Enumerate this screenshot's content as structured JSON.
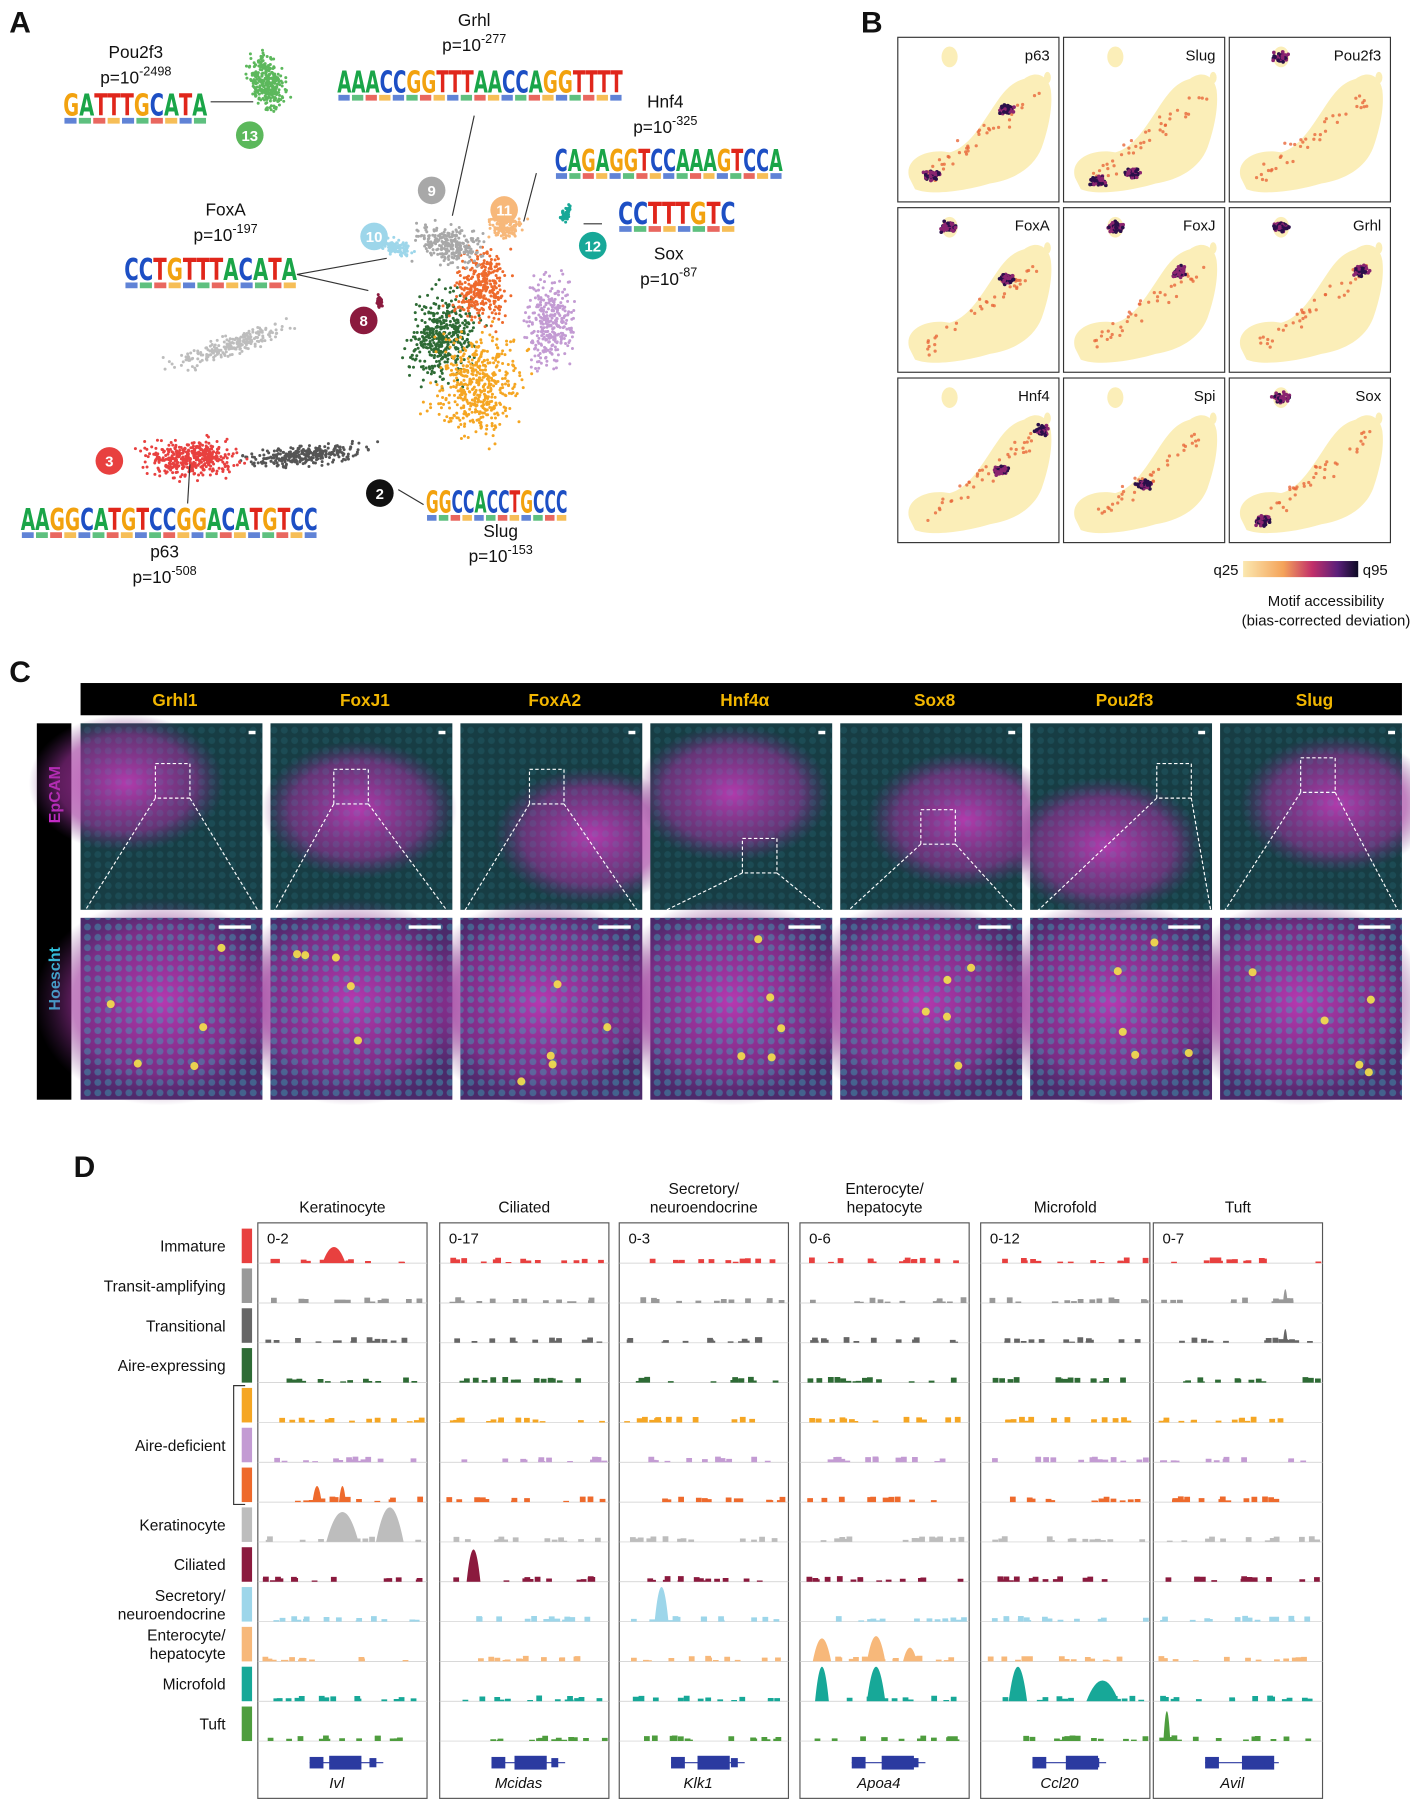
{
  "panel_a": {
    "label": "A",
    "motifs": [
      {
        "name": "Pou2f3",
        "p": {
          "base": "p=10",
          "exponent": "-2498"
        },
        "logo": "GATTTGCATA"
      },
      {
        "name": "Grhl",
        "p": {
          "base": "p=10",
          "exponent": "-277"
        },
        "logo": "AAACCGGTTTAACCAGGTTTT"
      },
      {
        "name": "Hnf4",
        "p": {
          "base": "p=10",
          "exponent": "-325"
        },
        "logo": "CAGAGGTCCAAAGTCCA"
      },
      {
        "name": "FoxA",
        "p": {
          "base": "p=10",
          "exponent": "-197"
        },
        "logo": "CCTGTTTACATA"
      },
      {
        "name": "Sox",
        "p": {
          "base": "p=10",
          "exponent": "-87"
        },
        "logo": "CCTTTGTC"
      },
      {
        "name": "p63",
        "p": {
          "base": "p=10",
          "exponent": "-508"
        },
        "logo": "AAGGCATGTCCGGACATGTCC"
      },
      {
        "name": "Slug",
        "p": {
          "base": "p=10",
          "exponent": "-153"
        },
        "logo": "GGCCACCTGCCC"
      }
    ],
    "clusters": [
      {
        "id": "13",
        "color": "#5cb85c"
      },
      {
        "id": "9",
        "color": "#a8a8a8"
      },
      {
        "id": "11",
        "color": "#f7b87a"
      },
      {
        "id": "10",
        "color": "#9dd6ea"
      },
      {
        "id": "12",
        "color": "#17a898"
      },
      {
        "id": "8",
        "color": "#8b1a3e"
      },
      {
        "id": "3",
        "color": "#e8403f"
      },
      {
        "id": "2",
        "color": "#111111"
      }
    ]
  },
  "panel_b": {
    "label": "B",
    "tiles": [
      "p63",
      "Slug",
      "Pou2f3",
      "FoxA",
      "FoxJ",
      "Grhl",
      "Hnf4",
      "Spi",
      "Sox"
    ],
    "scale": {
      "low": "q25",
      "high": "q95"
    },
    "title": [
      "Motif accessibility",
      "(bias-corrected deviation)"
    ]
  },
  "panel_c": {
    "label": "C",
    "markers": [
      "Grhl1",
      "FoxJ1",
      "FoxA2",
      "Hnf4α",
      "Sox8",
      "Pou2f3",
      "Slug"
    ],
    "stains": [
      "EpCAM",
      "Hoescht"
    ]
  },
  "panel_d": {
    "label": "D",
    "columns": [
      {
        "title": [
          "Keratinocyte"
        ],
        "range": "0-2",
        "gene": "Ivl"
      },
      {
        "title": [
          "Ciliated"
        ],
        "range": "0-17",
        "gene": "Mcidas"
      },
      {
        "title": [
          "Secretory/",
          "neuroendocrine"
        ],
        "range": "0-3",
        "gene": "Klk1"
      },
      {
        "title": [
          "Enterocyte/",
          "hepatocyte"
        ],
        "range": "0-6",
        "gene": "Apoa4"
      },
      {
        "title": [
          "Microfold"
        ],
        "range": "0-12",
        "gene": "Ccl20"
      },
      {
        "title": [
          "Tuft"
        ],
        "range": "0-7",
        "gene": "Avil"
      }
    ],
    "rows": [
      {
        "lines": [
          "Immature"
        ]
      },
      {
        "lines": [
          "Transit-amplifying"
        ]
      },
      {
        "lines": [
          "Transitional"
        ]
      },
      {
        "lines": [
          "Aire-expressing"
        ]
      },
      {
        "lines": [
          "Aire-deficient"
        ]
      },
      {
        "lines": [
          "Keratinocyte"
        ]
      },
      {
        "lines": [
          "Ciliated"
        ]
      },
      {
        "lines": [
          "Secretory/",
          "neuroendocrine"
        ]
      },
      {
        "lines": [
          "Enterocyte/",
          "hepatocyte"
        ]
      },
      {
        "lines": [
          "Microfold"
        ]
      },
      {
        "lines": [
          "Tuft"
        ]
      }
    ],
    "track_colors": [
      "#e8403f",
      "#999999",
      "#666666",
      "#2e6b35",
      "#f5a623",
      "#c39bd3",
      "#ee6a2c",
      "#bdbdbd",
      "#8b1a3e",
      "#9dd6ea",
      "#f7b87a",
      "#17a898",
      "#4e9d3e"
    ]
  }
}
